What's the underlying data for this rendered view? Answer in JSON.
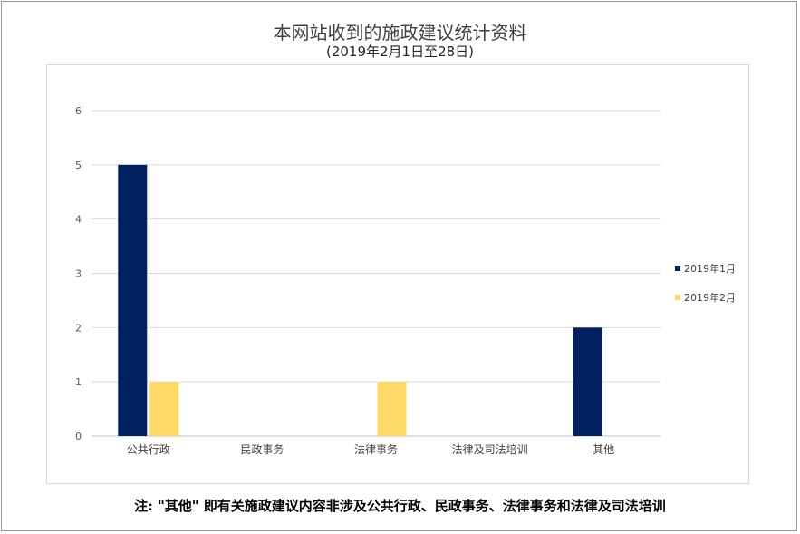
{
  "title": "本网站收到的施政建议统计资料",
  "subtitle": "(2019年2月1日至28日)",
  "footnote": "注: \"其他\" 即有关施政建议内容非涉及公共行政、民政事务、法律事务和法律及司法培训",
  "chart_data": {
    "type": "bar",
    "categories": [
      "公共行政",
      "民政事务",
      "法律事务",
      "法律及司法培训",
      "其他"
    ],
    "series": [
      {
        "name": "2019年1月",
        "values": [
          5,
          0,
          0,
          0,
          2
        ],
        "color": "#002060"
      },
      {
        "name": "2019年2月",
        "values": [
          1,
          0,
          1,
          0,
          0
        ],
        "color": "#ffd966"
      }
    ],
    "ylim": [
      0,
      6
    ],
    "yticks": [
      0,
      1,
      2,
      3,
      4,
      5,
      6
    ],
    "grid": true,
    "legend": "right"
  }
}
